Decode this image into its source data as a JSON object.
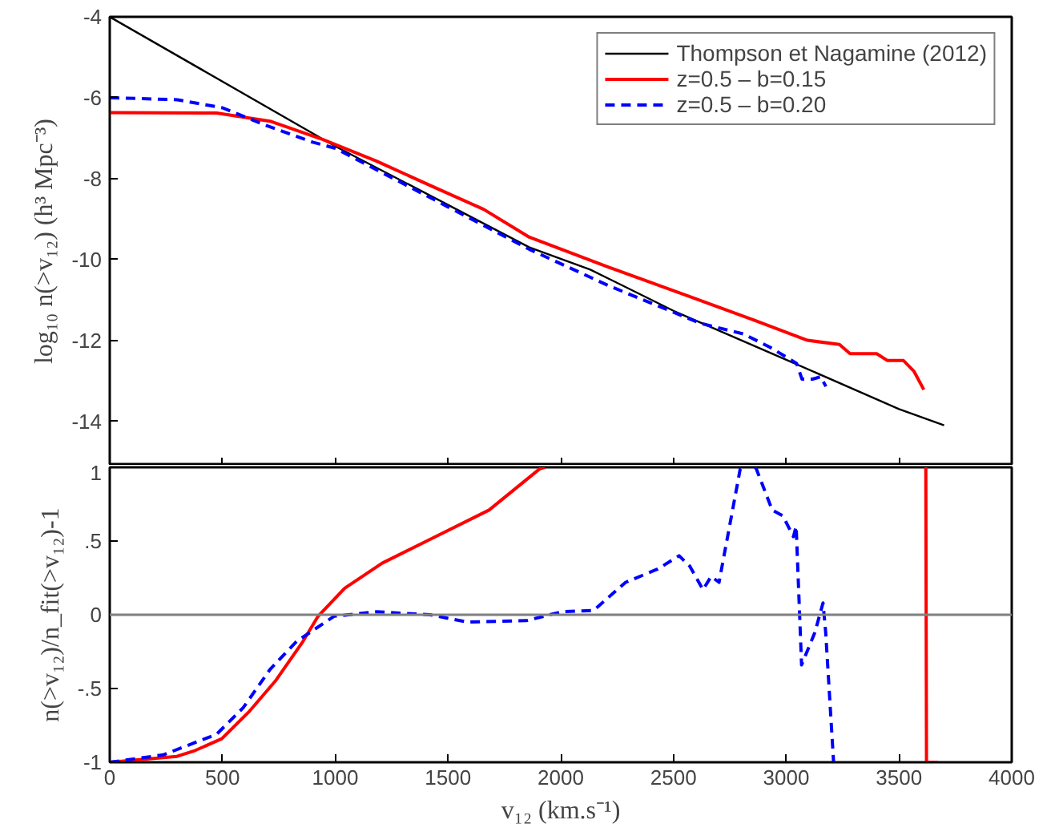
{
  "chart_data": [
    {
      "type": "line",
      "ylabel": "log₁₀ n(>v₁₂) (h³ Mpc⁻³)",
      "xlim": [
        0,
        4000
      ],
      "xticks": [
        0,
        500,
        1000,
        1500,
        2000,
        2500,
        3000,
        3500,
        4000
      ],
      "ylim": [
        -15.1,
        -4
      ],
      "yticks": [
        -4,
        -6,
        -8,
        -10,
        -12,
        -14
      ],
      "tick_labels": "y",
      "legend": "top right",
      "grid": false,
      "line_style": "solid",
      "series": [
        {
          "name": "Thompson et Nagamine (2012)",
          "color": "#000000",
          "x": [
            0,
            1000,
            1500,
            1861,
            2131,
            2500,
            3000,
            3500,
            3700
          ],
          "values": [
            -4,
            -7.2,
            -8.65,
            -9.7,
            -10.25,
            -11.27,
            -12.48,
            -13.7,
            -14.1
          ]
        },
        {
          "name": "z=0.5 – b=0.15",
          "color": "#ff0000",
          "x": [
            0,
            474,
            711,
            948,
            1184,
            1421,
            1658,
            1861,
            2217,
            2573,
            2857,
            3094,
            3236,
            3283,
            3401,
            3449,
            3520,
            3567,
            3610
          ],
          "values": [
            -6.37,
            -6.38,
            -6.58,
            -7.04,
            -7.57,
            -8.17,
            -8.76,
            -9.45,
            -10.2,
            -10.92,
            -11.5,
            -12.0,
            -12.1,
            -12.33,
            -12.33,
            -12.5,
            -12.5,
            -12.77,
            -13.22
          ]
        },
        {
          "name": "z=0.5 – b=0.20",
          "color": "#0000ff",
          "line_style": "dashed",
          "x": [
            0,
            300,
            500,
            700,
            900,
            1000,
            1500,
            1861,
            2217,
            2620,
            2809,
            2928,
            3046,
            3070,
            3117,
            3152,
            3176
          ],
          "values": [
            -6.0,
            -6.05,
            -6.25,
            -6.7,
            -7.1,
            -7.25,
            -8.7,
            -9.75,
            -10.66,
            -11.58,
            -11.84,
            -12.17,
            -12.57,
            -12.96,
            -12.96,
            -12.9,
            -13.14
          ]
        }
      ]
    },
    {
      "type": "line",
      "xlabel": "v₁₂ (km.s⁻¹)",
      "ylabel": "n(>v₁₂)/n_fit(>v₁₂)-1",
      "xlim": [
        0,
        4000
      ],
      "xticks": [
        0,
        500,
        1000,
        1500,
        2000,
        2500,
        3000,
        3500,
        4000
      ],
      "ylim": [
        -1,
        1
      ],
      "yticks": [
        {
          "value": -1,
          "label": "-1"
        },
        {
          "value": -0.5,
          "label": "-.5"
        },
        {
          "value": 0,
          "label": "0"
        },
        {
          "value": 0.5,
          "label": ".5"
        },
        {
          "value": 1,
          "label": "1"
        }
      ],
      "grid": false,
      "line_style": "solid",
      "ref_lines": [
        {
          "axis": "y",
          "value": 0,
          "color": "#808080"
        }
      ],
      "series": [
        {
          "color": "#ff0000",
          "x": [
            0,
            298,
            379,
            497,
            616,
            734,
            853,
            924,
            1042,
            1208,
            1445,
            1682,
            1907,
            1930,
            1940,
            3619,
            3622,
            3673
          ],
          "values": [
            -1.0,
            -0.96,
            -0.92,
            -0.84,
            -0.66,
            -0.45,
            -0.19,
            -0.01,
            0.18,
            0.35,
            0.53,
            0.71,
            0.99,
            1.0,
            null,
            1.0,
            -1.0,
            -1.0
          ]
        },
        {
          "color": "#0000ff",
          "line_style": "dashed",
          "x": [
            0,
            237,
            474,
            592,
            711,
            829,
            995,
            1184,
            1421,
            1587,
            1847,
            2004,
            2146,
            2288,
            2430,
            2525,
            2572,
            2631,
            2667,
            2702,
            2762,
            2796,
            2805,
            2815,
            2862,
            2867,
            2938,
            2985,
            3032,
            3044,
            3068,
            3127,
            3163,
            3175,
            3210
          ],
          "values": [
            -1.0,
            -0.95,
            -0.81,
            -0.63,
            -0.37,
            -0.18,
            -0.01,
            0.02,
            0.0,
            -0.05,
            -0.04,
            0.02,
            0.03,
            0.22,
            0.31,
            0.4,
            0.33,
            0.17,
            0.26,
            0.22,
            0.71,
            0.99,
            1.0,
            null,
            1.0,
            0.99,
            0.71,
            0.67,
            0.53,
            0.6,
            -0.34,
            -0.12,
            0.08,
            -0.12,
            -1.0
          ]
        }
      ]
    }
  ]
}
